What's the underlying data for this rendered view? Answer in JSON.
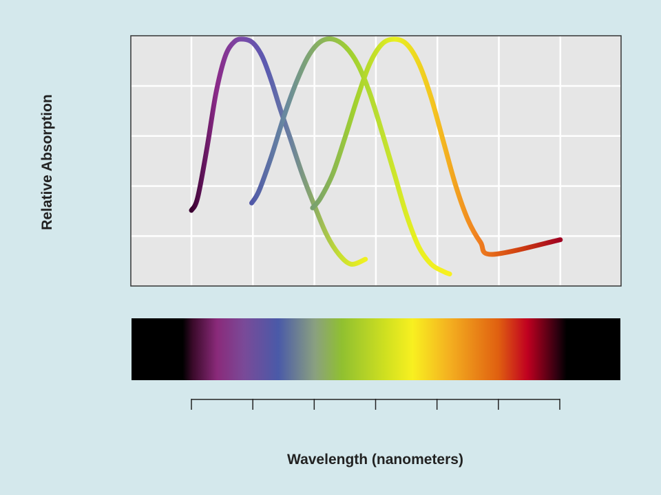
{
  "chart_data": {
    "type": "line",
    "title": "",
    "xlabel": "Wavelength (nanometers)",
    "ylabel": "Relative Absorption",
    "x_ticks": 7,
    "tick_labels": [],
    "grid": true,
    "plot_background": "#e6e6e6",
    "grid_color": "#ffffff",
    "page_background": "#d4e8ec",
    "spectrum_bar": {
      "stops": [
        {
          "pos": 0.0,
          "color": "#000000"
        },
        {
          "pos": 0.105,
          "color": "#000000"
        },
        {
          "pos": 0.125,
          "color": "#3a0a2a"
        },
        {
          "pos": 0.175,
          "color": "#8a2a7a"
        },
        {
          "pos": 0.23,
          "color": "#7a4a98"
        },
        {
          "pos": 0.3,
          "color": "#4a5aa8"
        },
        {
          "pos": 0.375,
          "color": "#8aa080"
        },
        {
          "pos": 0.43,
          "color": "#90c030"
        },
        {
          "pos": 0.52,
          "color": "#d0e020"
        },
        {
          "pos": 0.575,
          "color": "#f8f020"
        },
        {
          "pos": 0.65,
          "color": "#f4b020"
        },
        {
          "pos": 0.75,
          "color": "#e06010"
        },
        {
          "pos": 0.81,
          "color": "#c00020"
        },
        {
          "pos": 0.87,
          "color": "#300010"
        },
        {
          "pos": 0.89,
          "color": "#000000"
        },
        {
          "pos": 1.0,
          "color": "#000000"
        }
      ]
    },
    "series": [
      {
        "peak_x": 1.15,
        "peak_y": 1.0,
        "x_start": 0.0,
        "x_end": 1.0,
        "sigma": 0.5,
        "y_start": 0.3,
        "y_end": 0.33,
        "colors": [
          "#2a0020",
          "#7a2a80",
          "#7848a0",
          "#6a5cb0",
          "#4858a8"
        ],
        "shape": [
          [
            0.0,
            0.3
          ],
          [
            0.05,
            0.32
          ],
          [
            0.15,
            0.45
          ],
          [
            0.3,
            0.72
          ],
          [
            0.5,
            0.93
          ],
          [
            0.7,
            0.995
          ],
          [
            0.85,
            1.0
          ],
          [
            1.0,
            0.98
          ],
          [
            1.2,
            0.88
          ],
          [
            1.4,
            0.75
          ],
          [
            1.6,
            0.62
          ],
          [
            1.8,
            0.45
          ],
          [
            2.0,
            0.3
          ],
          [
            2.2,
            0.2
          ],
          [
            2.4,
            0.12
          ],
          [
            2.6,
            0.08
          ],
          [
            2.83,
            0.1
          ]
        ]
      }
    ]
  },
  "curves": [
    {
      "name": "violet-absorption-curve",
      "points": [
        [
          0.0,
          0.3
        ],
        [
          0.1,
          0.35
        ],
        [
          0.25,
          0.55
        ],
        [
          0.4,
          0.78
        ],
        [
          0.55,
          0.93
        ],
        [
          0.7,
          0.99
        ],
        [
          0.85,
          1.0
        ],
        [
          1.0,
          0.985
        ],
        [
          1.15,
          0.93
        ],
        [
          1.3,
          0.83
        ],
        [
          1.45,
          0.71
        ],
        [
          1.6,
          0.6
        ],
        [
          1.8,
          0.45
        ],
        [
          2.0,
          0.32
        ],
        [
          2.2,
          0.2
        ],
        [
          2.4,
          0.12
        ],
        [
          2.6,
          0.08
        ],
        [
          2.83,
          0.1
        ]
      ],
      "colors": [
        "#3a0030",
        "#8a2a88",
        "#7a4aa8",
        "#5a5ab0",
        "#6a80a0",
        "#90b060",
        "#c8e030",
        "#f0f020"
      ]
    },
    {
      "name": "green-absorption-curve",
      "points": [
        [
          0.98,
          0.33
        ],
        [
          1.1,
          0.38
        ],
        [
          1.3,
          0.52
        ],
        [
          1.5,
          0.68
        ],
        [
          1.7,
          0.82
        ],
        [
          1.9,
          0.93
        ],
        [
          2.1,
          0.99
        ],
        [
          2.3,
          1.0
        ],
        [
          2.5,
          0.97
        ],
        [
          2.7,
          0.9
        ],
        [
          2.9,
          0.78
        ],
        [
          3.1,
          0.62
        ],
        [
          3.3,
          0.45
        ],
        [
          3.5,
          0.28
        ],
        [
          3.7,
          0.15
        ],
        [
          3.9,
          0.08
        ],
        [
          4.1,
          0.05
        ],
        [
          4.2,
          0.04
        ]
      ],
      "colors": [
        "#5058a8",
        "#6888a0",
        "#88b060",
        "#a0d030",
        "#c0e030",
        "#e8f020",
        "#f8f020"
      ]
    },
    {
      "name": "yellow-absorption-curve",
      "points": [
        [
          1.97,
          0.31
        ],
        [
          2.1,
          0.35
        ],
        [
          2.3,
          0.45
        ],
        [
          2.5,
          0.6
        ],
        [
          2.7,
          0.76
        ],
        [
          2.9,
          0.9
        ],
        [
          3.1,
          0.98
        ],
        [
          3.3,
          1.0
        ],
        [
          3.5,
          0.98
        ],
        [
          3.7,
          0.9
        ],
        [
          3.9,
          0.76
        ],
        [
          4.1,
          0.58
        ],
        [
          4.3,
          0.4
        ],
        [
          4.5,
          0.26
        ],
        [
          4.7,
          0.17
        ],
        [
          4.9,
          0.12
        ],
        [
          6.0,
          0.18
        ]
      ],
      "colors": [
        "#78a070",
        "#a0d030",
        "#e8f020",
        "#f4c020",
        "#f08020",
        "#d04010",
        "#a00020"
      ]
    }
  ]
}
